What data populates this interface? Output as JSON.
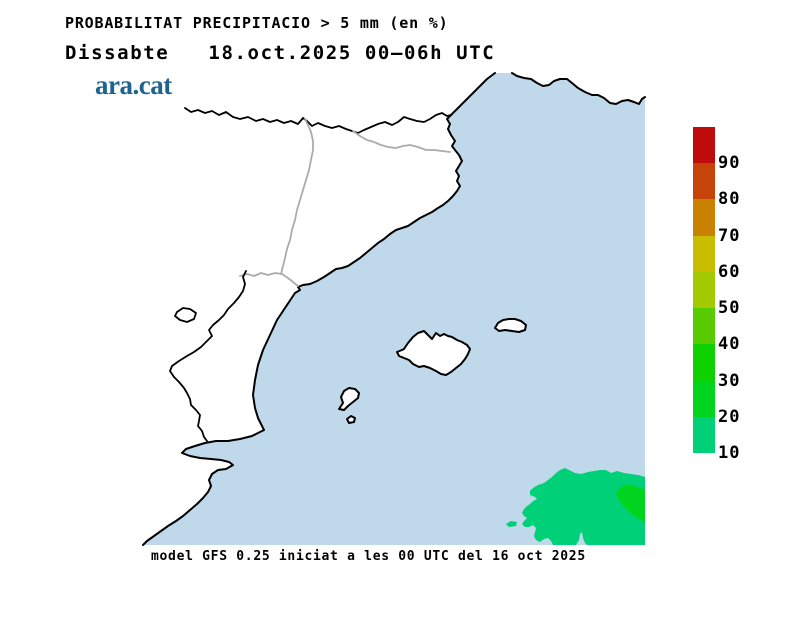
{
  "header": {
    "title": "PROBABILITAT PRECIPITACIO > 5 mm (en %)",
    "subtitle": "Dissabte   18.oct.2025 00–06h UTC",
    "logo_text": "ara.cat",
    "logo_color": "#1E648F"
  },
  "footer": {
    "model_info": "model GFS 0.25 iniciat a les 00 UTC del 16 oct 2025"
  },
  "colorbar": {
    "unit": "%",
    "labels": [
      "90",
      "80",
      "70",
      "60",
      "50",
      "40",
      "30",
      "20",
      "10"
    ],
    "segments": [
      {
        "range": "90-100",
        "color": "#BE0C0C"
      },
      {
        "range": "80-90",
        "color": "#C6430A"
      },
      {
        "range": "70-80",
        "color": "#C98200"
      },
      {
        "range": "60-70",
        "color": "#C9BD00"
      },
      {
        "range": "50-60",
        "color": "#A3C900"
      },
      {
        "range": "40-50",
        "color": "#57CB00"
      },
      {
        "range": "30-40",
        "color": "#0FD000"
      },
      {
        "range": "20-30",
        "color": "#00D41E"
      },
      {
        "range": "10-20",
        "color": "#00D178"
      }
    ]
  },
  "map": {
    "sea_color": "#BFD8EA",
    "land_color": "#FFFFFF",
    "coast_color": "#000000",
    "admin_border_color": "#ABABAB",
    "precip_levels": [
      {
        "probability": "10-20",
        "color": "#00D178"
      },
      {
        "probability": "20-30",
        "color": "#00D41E"
      }
    ]
  }
}
